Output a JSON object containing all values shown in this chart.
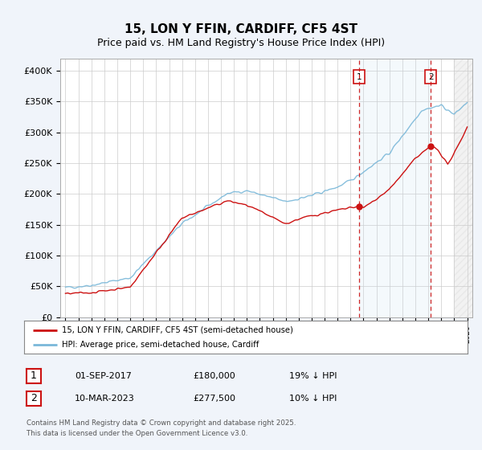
{
  "title": "15, LON Y FFIN, CARDIFF, CF5 4ST",
  "subtitle": "Price paid vs. HM Land Registry's House Price Index (HPI)",
  "ylim": [
    0,
    420000
  ],
  "yticks": [
    0,
    50000,
    100000,
    150000,
    200000,
    250000,
    300000,
    350000,
    400000
  ],
  "ytick_labels": [
    "£0",
    "£50K",
    "£100K",
    "£150K",
    "£200K",
    "£250K",
    "£300K",
    "£350K",
    "£400K"
  ],
  "hpi_color": "#7ab8d9",
  "price_color": "#cc1111",
  "vline_color": "#cc1111",
  "marker1_x": 2017.67,
  "marker2_x": 2023.19,
  "marker1_price": 180000,
  "marker2_price": 277500,
  "shade_start": 2017.67,
  "shade_end": 2023.19,
  "legend_entry1": "15, LON Y FFIN, CARDIFF, CF5 4ST (semi-detached house)",
  "legend_entry2": "HPI: Average price, semi-detached house, Cardiff",
  "table_row1": [
    "1",
    "01-SEP-2017",
    "£180,000",
    "19% ↓ HPI"
  ],
  "table_row2": [
    "2",
    "10-MAR-2023",
    "£277,500",
    "10% ↓ HPI"
  ],
  "footer": "Contains HM Land Registry data © Crown copyright and database right 2025.\nThis data is licensed under the Open Government Licence v3.0.",
  "background_color": "#f0f4fa",
  "plot_bg_color": "#ffffff",
  "grid_color": "#cccccc",
  "title_fontsize": 11,
  "subtitle_fontsize": 9,
  "tick_fontsize": 8,
  "xlim_left": 1994.6,
  "xlim_right": 2026.4
}
